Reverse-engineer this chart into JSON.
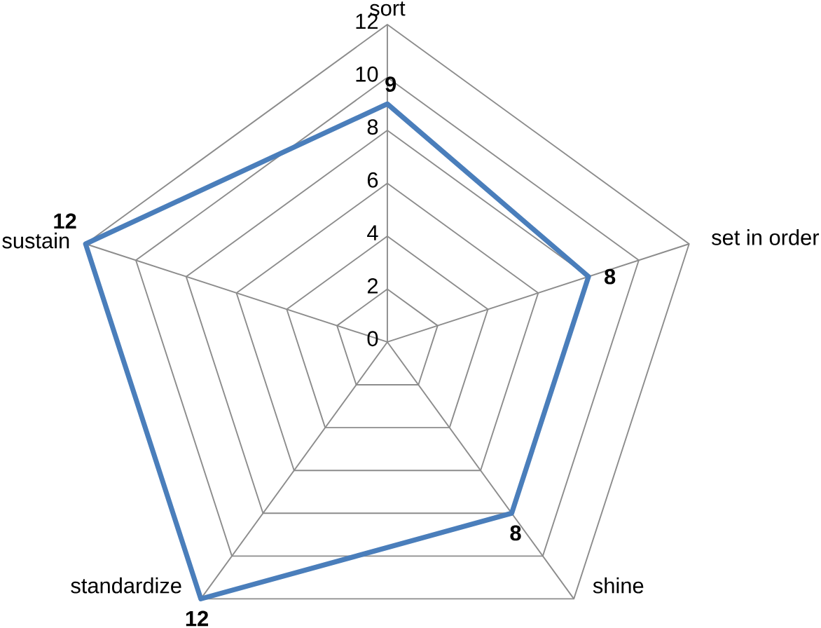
{
  "chart_data": {
    "type": "radar",
    "categories": [
      "sort",
      "set in order",
      "shine",
      "standardize",
      "sustain"
    ],
    "series": [
      {
        "color": "#4a7ebb",
        "values": [
          9,
          8,
          8,
          12,
          12
        ]
      }
    ],
    "ylim": [
      0,
      12
    ],
    "yticks": [
      0,
      2,
      4,
      6,
      8,
      10,
      12
    ],
    "grid": true,
    "data_labels": true
  }
}
